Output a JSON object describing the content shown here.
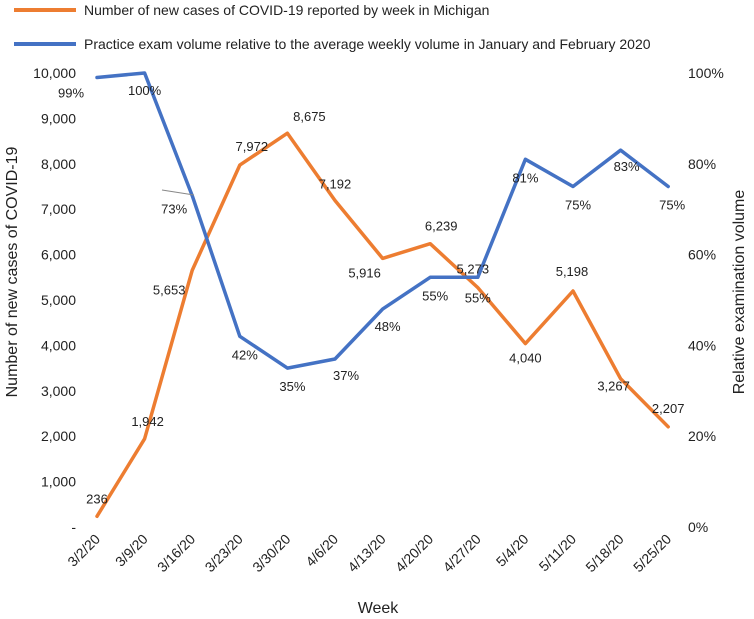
{
  "chart_data": {
    "type": "line",
    "categories": [
      "3/2/20",
      "3/9/20",
      "3/16/20",
      "3/23/20",
      "3/30/20",
      "4/6/20",
      "4/13/20",
      "4/20/20",
      "4/27/20",
      "5/4/20",
      "5/11/20",
      "5/18/20",
      "5/25/20"
    ],
    "xlabel": "Week",
    "ylabel": "Number of new cases of COVID-19",
    "y2label": "Relative examination volume",
    "ylim": [
      0,
      10000
    ],
    "y2lim": [
      0,
      100
    ],
    "yticks": [
      "-",
      "1,000",
      "2,000",
      "3,000",
      "4,000",
      "5,000",
      "6,000",
      "7,000",
      "8,000",
      "9,000",
      "10,000"
    ],
    "y2ticks": [
      "0%",
      "20%",
      "40%",
      "60%",
      "80%",
      "100%"
    ],
    "legend_position": "top",
    "series": [
      {
        "name": "Number of new cases of COVID-19 reported by week in Michigan",
        "axis": "left",
        "color": "#ED7D31",
        "values": [
          236,
          1942,
          5653,
          7972,
          8675,
          7192,
          5916,
          6239,
          5273,
          4040,
          5198,
          3267,
          2207
        ],
        "labels": [
          "236",
          "1,942",
          "5,653",
          "7,972",
          "8,675",
          "7,192",
          "5,916",
          "6,239",
          "5,273",
          "4,040",
          "5,198",
          "3,267",
          "2,207"
        ]
      },
      {
        "name": "Practice exam volume relative to the average weekly volume in January and February 2020",
        "axis": "right",
        "color": "#4472C4",
        "values": [
          99,
          100,
          73,
          42,
          35,
          37,
          48,
          55,
          55,
          81,
          75,
          83,
          75
        ],
        "labels": [
          "99%",
          "100%",
          "73%",
          "42%",
          "35%",
          "37%",
          "48%",
          "55%",
          "55%",
          "81%",
          "75%",
          "83%",
          "75%"
        ]
      }
    ]
  }
}
